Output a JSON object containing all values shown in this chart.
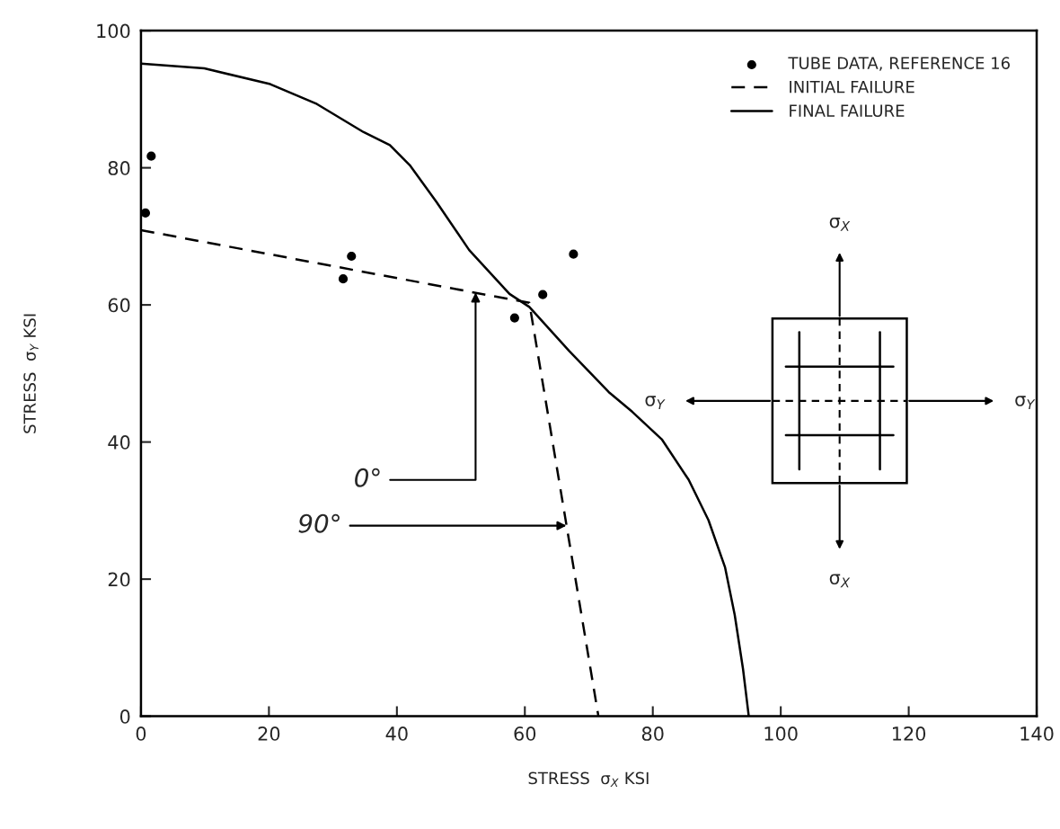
{
  "chart_data": {
    "type": "line",
    "xlabel": "STRESS  σ$_{X}$ KSI",
    "ylabel": "STRESS  σ$_{Y}$ KSI",
    "xlim": [
      0,
      140
    ],
    "xticks": [
      0,
      20,
      40,
      60,
      80,
      100,
      120,
      140
    ],
    "ylim": [
      0,
      100
    ],
    "yticks": [
      0,
      20,
      40,
      60,
      80,
      100
    ],
    "grid": false,
    "legend": "top right",
    "series": [
      {
        "name": "TUBE DATA, REFERENCE 16",
        "type": "scatter",
        "marker": "circle",
        "color": "#000000",
        "x": [
          0.7,
          1.6,
          31.6,
          32.9,
          58.4,
          62.8,
          67.6
        ],
        "values": [
          73.4,
          81.7,
          63.8,
          67.1,
          58.1,
          61.5,
          67.4
        ]
      },
      {
        "name": "INITIAL FAILURE",
        "line_style": "dashed",
        "color": "#000000",
        "x": [
          0,
          60.7,
          71.5
        ],
        "values": [
          70.9,
          60.3,
          0
        ]
      },
      {
        "name": "FINAL FAILURE",
        "line_style": "solid",
        "color": "#000000",
        "x": [
          0,
          9.9,
          20.2,
          27.5,
          34.8,
          38.9,
          42,
          46.2,
          51.3,
          57.6,
          60.7,
          66.9,
          73.1,
          76.8,
          81.4,
          85.6,
          88.7,
          91.3,
          92.8,
          94.1,
          95
        ],
        "values": [
          95.2,
          94.5,
          92.2,
          89.3,
          85.2,
          83.3,
          80.4,
          75,
          68,
          61.6,
          59.7,
          53.3,
          47.3,
          44.4,
          40.4,
          34.5,
          28.6,
          21.7,
          14.8,
          6.9,
          0
        ]
      }
    ],
    "annotations": [
      {
        "text": "0°",
        "x": 52.3,
        "y": 61.8
      },
      {
        "text": "90°",
        "x": 66.5,
        "y": 27.8
      },
      "σ$_{X}$",
      "σ$_{X}$",
      "σ$_{Y}$",
      "σ$_{Y}$"
    ]
  }
}
